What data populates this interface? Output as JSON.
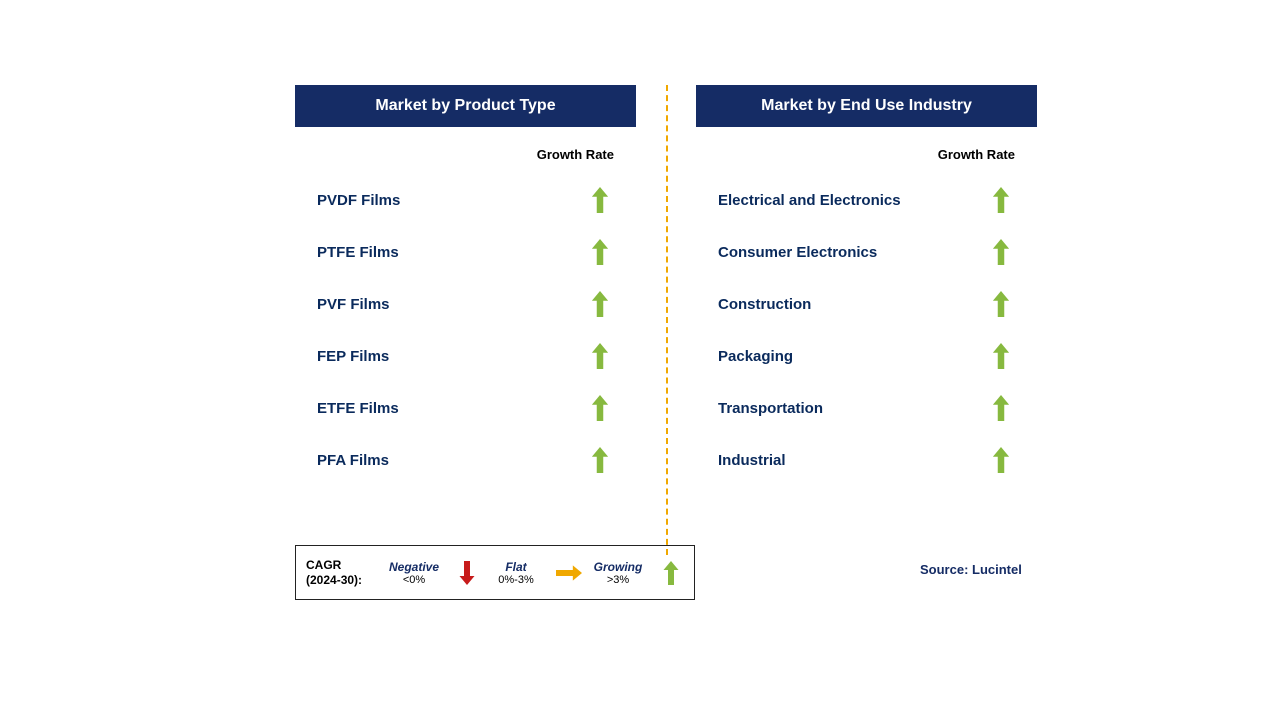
{
  "colors": {
    "header_bg": "#152c65",
    "header_text": "#ffffff",
    "label_text": "#0a2a5c",
    "divider": "#f0a800",
    "arrow_up": "#87b93f",
    "arrow_down": "#c71b1b",
    "arrow_flat": "#f0a800",
    "background": "#ffffff"
  },
  "left": {
    "title": "Market by Product Type",
    "column_label": "Growth Rate",
    "items": [
      {
        "label": "PVDF Films",
        "growth": "up"
      },
      {
        "label": "PTFE Films",
        "growth": "up"
      },
      {
        "label": "PVF Films",
        "growth": "up"
      },
      {
        "label": "FEP Films",
        "growth": "up"
      },
      {
        "label": "ETFE Films",
        "growth": "up"
      },
      {
        "label": "PFA Films",
        "growth": "up"
      }
    ]
  },
  "right": {
    "title": "Market by End Use Industry",
    "column_label": "Growth Rate",
    "items": [
      {
        "label": "Electrical and Electronics",
        "growth": "up"
      },
      {
        "label": "Consumer Electronics",
        "growth": "up"
      },
      {
        "label": "Construction",
        "growth": "up"
      },
      {
        "label": "Packaging",
        "growth": "up"
      },
      {
        "label": "Transportation",
        "growth": "up"
      },
      {
        "label": "Industrial",
        "growth": "up"
      }
    ]
  },
  "legend": {
    "title_line1": "CAGR",
    "title_line2": "(2024-30):",
    "items": [
      {
        "name": "Negative",
        "range": "<0%",
        "arrow": "down"
      },
      {
        "name": "Flat",
        "range": "0%-3%",
        "arrow": "flat"
      },
      {
        "name": "Growing",
        "range": ">3%",
        "arrow": "up"
      }
    ]
  },
  "source": "Source: Lucintel"
}
